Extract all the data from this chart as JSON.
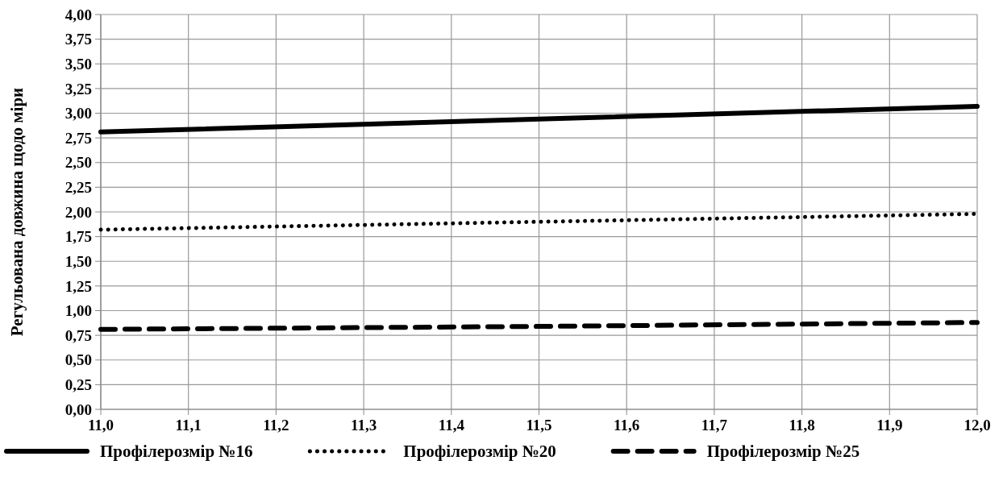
{
  "chart_data": {
    "type": "line",
    "ylabel": "Регульована довжина щодо міри",
    "xlim": [
      11.0,
      12.0
    ],
    "ylim": [
      0,
      4
    ],
    "x": [
      11.0,
      11.5,
      12.0
    ],
    "xticks": [
      {
        "value": 11.0,
        "label": "11,0"
      },
      {
        "value": 11.1,
        "label": "11,1"
      },
      {
        "value": 11.2,
        "label": "11,2"
      },
      {
        "value": 11.3,
        "label": "11,3"
      },
      {
        "value": 11.4,
        "label": "11,4"
      },
      {
        "value": 11.5,
        "label": "11,5"
      },
      {
        "value": 11.6,
        "label": "11,6"
      },
      {
        "value": 11.7,
        "label": "11,7"
      },
      {
        "value": 11.8,
        "label": "11,8"
      },
      {
        "value": 11.9,
        "label": "11,9"
      },
      {
        "value": 12.0,
        "label": "12,0"
      }
    ],
    "yticks": [
      {
        "value": 0,
        "label": "0,00"
      },
      {
        "value": 0.25,
        "label": "0,25"
      },
      {
        "value": 0.5,
        "label": "0,50"
      },
      {
        "value": 0.75,
        "label": "0,75"
      },
      {
        "value": 1,
        "label": "1,00"
      },
      {
        "value": 1.25,
        "label": "1,25"
      },
      {
        "value": 1.5,
        "label": "1,50"
      },
      {
        "value": 1.75,
        "label": "1,75"
      },
      {
        "value": 2,
        "label": "2,00"
      },
      {
        "value": 2.25,
        "label": "2,25"
      },
      {
        "value": 2.5,
        "label": "2,50"
      },
      {
        "value": 2.75,
        "label": "2,75"
      },
      {
        "value": 3,
        "label": "3,00"
      },
      {
        "value": 3.25,
        "label": "3,25"
      },
      {
        "value": 3.5,
        "label": "3,50"
      },
      {
        "value": 3.75,
        "label": "3,75"
      },
      {
        "value": 4,
        "label": "4,00"
      }
    ],
    "grid": true,
    "legend": "bottom",
    "marker": "none",
    "series": [
      {
        "name": "Профілерозмір №16",
        "color": "#000000",
        "line_style": "solid",
        "values": [
          2.81,
          2.94,
          3.07
        ]
      },
      {
        "name": "Профілерозмір №20",
        "color": "#000000",
        "line_style": "dotted",
        "values": [
          1.82,
          1.9,
          1.98
        ]
      },
      {
        "name": "Профілерозмір №25",
        "color": "#000000",
        "line_style": "dashed",
        "values": [
          0.81,
          0.84,
          0.88
        ]
      }
    ]
  }
}
